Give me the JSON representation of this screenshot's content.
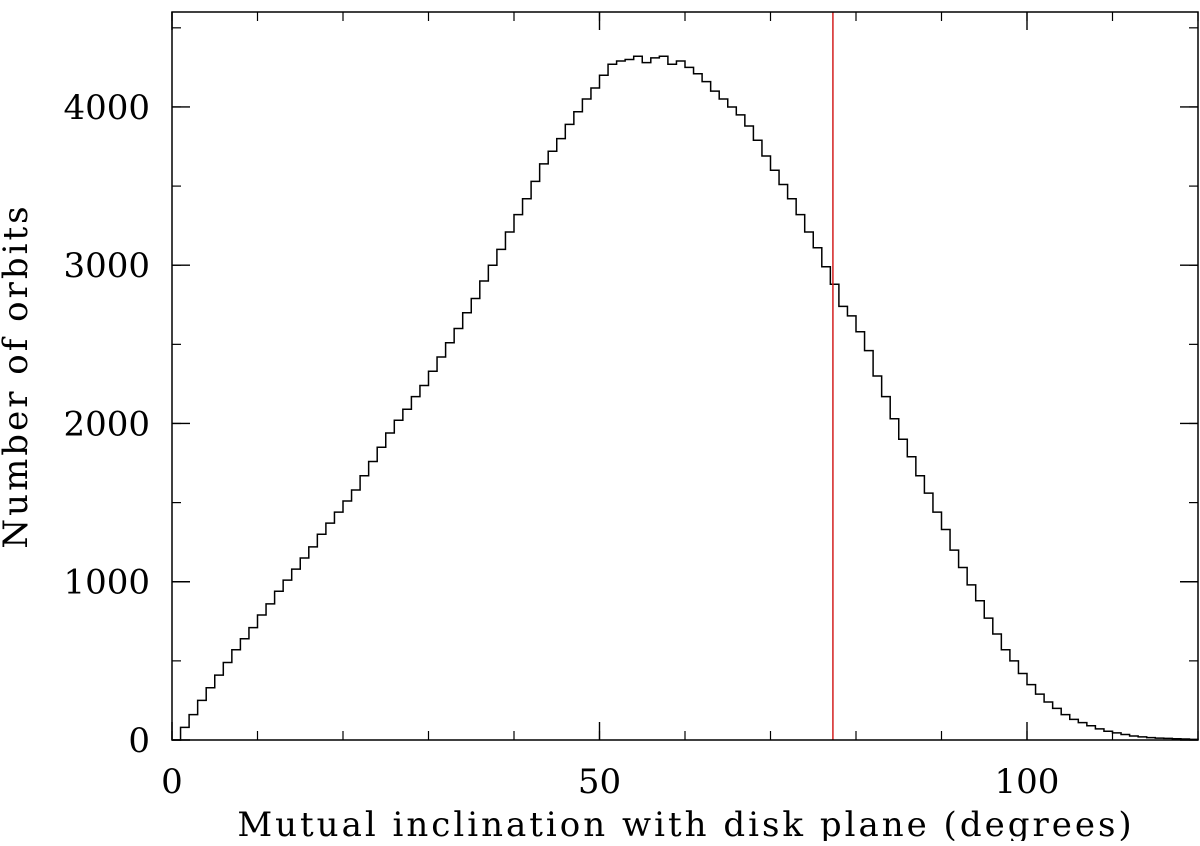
{
  "chart_data": {
    "type": "line",
    "style": "step-histogram",
    "title": "",
    "xlabel": "Mutual inclination with disk plane (degrees)",
    "ylabel": "Number of orbits",
    "xlim": [
      0,
      120
    ],
    "ylim": [
      0,
      4600
    ],
    "x_ticks": [
      {
        "value": 0,
        "label": "0"
      },
      {
        "value": 50,
        "label": "50"
      },
      {
        "value": 100,
        "label": "100"
      }
    ],
    "y_ticks": [
      {
        "value": 0,
        "label": "0"
      },
      {
        "value": 1000,
        "label": "1000"
      },
      {
        "value": 2000,
        "label": "2000"
      },
      {
        "value": 3000,
        "label": "3000"
      },
      {
        "value": 4000,
        "label": "4000"
      }
    ],
    "x_minor_step": 10,
    "y_minor_step": 500,
    "grid": false,
    "legend": "none",
    "series": [
      {
        "color": "#000000",
        "x": [
          0,
          1,
          2,
          3,
          4,
          5,
          6,
          7,
          8,
          9,
          10,
          11,
          12,
          13,
          14,
          15,
          16,
          17,
          18,
          19,
          20,
          21,
          22,
          23,
          24,
          25,
          26,
          27,
          28,
          29,
          30,
          31,
          32,
          33,
          34,
          35,
          36,
          37,
          38,
          39,
          40,
          41,
          42,
          43,
          44,
          45,
          46,
          47,
          48,
          49,
          50,
          51,
          52,
          53,
          54,
          55,
          56,
          57,
          58,
          59,
          60,
          61,
          62,
          63,
          64,
          65,
          66,
          67,
          68,
          69,
          70,
          71,
          72,
          73,
          74,
          75,
          76,
          77,
          78,
          79,
          80,
          81,
          82,
          83,
          84,
          85,
          86,
          87,
          88,
          89,
          90,
          91,
          92,
          93,
          94,
          95,
          96,
          97,
          98,
          99,
          100,
          101,
          102,
          103,
          104,
          105,
          106,
          107,
          108,
          109,
          110,
          111,
          112,
          113,
          114,
          115,
          116,
          117,
          118,
          119,
          120
        ],
        "y": [
          0,
          80,
          160,
          250,
          330,
          410,
          490,
          570,
          640,
          710,
          790,
          860,
          940,
          1010,
          1080,
          1150,
          1220,
          1300,
          1370,
          1440,
          1510,
          1580,
          1670,
          1760,
          1850,
          1940,
          2020,
          2090,
          2170,
          2240,
          2330,
          2420,
          2510,
          2600,
          2700,
          2790,
          2900,
          3000,
          3100,
          3210,
          3320,
          3420,
          3530,
          3640,
          3720,
          3800,
          3890,
          3970,
          4050,
          4120,
          4200,
          4270,
          4290,
          4300,
          4320,
          4280,
          4310,
          4320,
          4270,
          4290,
          4250,
          4210,
          4160,
          4100,
          4050,
          4000,
          3950,
          3880,
          3790,
          3690,
          3600,
          3510,
          3420,
          3320,
          3210,
          3110,
          2990,
          2880,
          2740,
          2680,
          2580,
          2460,
          2300,
          2170,
          2030,
          1900,
          1790,
          1670,
          1560,
          1440,
          1330,
          1200,
          1090,
          980,
          880,
          770,
          670,
          570,
          500,
          420,
          350,
          290,
          240,
          200,
          160,
          130,
          110,
          90,
          70,
          55,
          45,
          35,
          25,
          20,
          15,
          12,
          10,
          8,
          6,
          4,
          2
        ]
      }
    ],
    "reference_lines": [
      {
        "axis": "x",
        "value": 77.3,
        "color": "#d42020"
      }
    ]
  }
}
